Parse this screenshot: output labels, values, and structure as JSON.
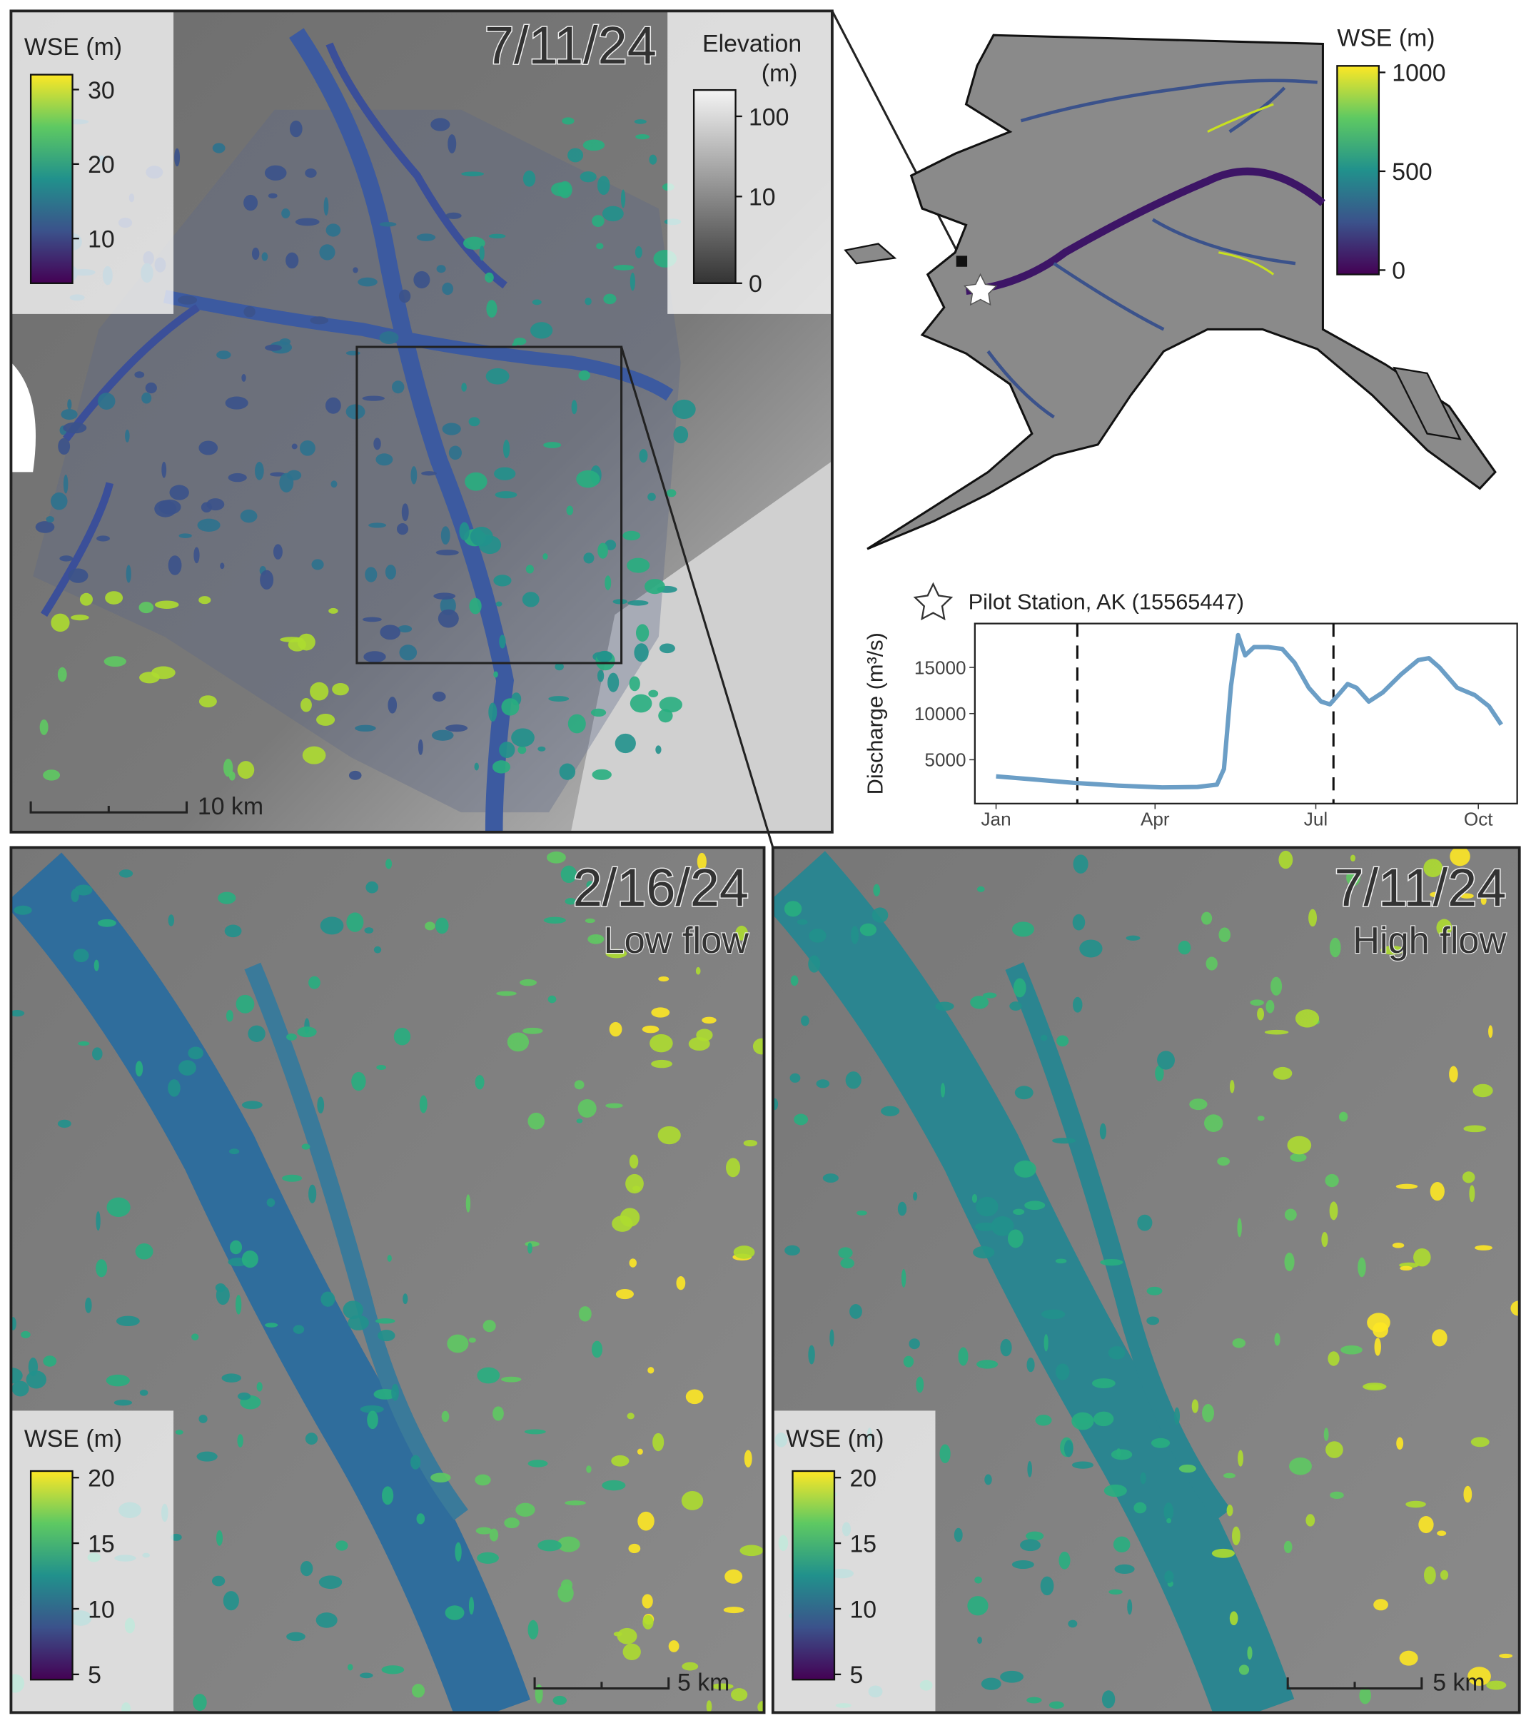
{
  "overview_map": {
    "date": "7/11/24",
    "wse_legend": {
      "title": "WSE (m)",
      "ticks": [
        10,
        20,
        30
      ],
      "lim": [
        4,
        32
      ]
    },
    "elevation_legend": {
      "title_lines": [
        "Elevation",
        "(m)"
      ],
      "ticks": [
        0,
        10,
        100
      ],
      "lim": [
        0,
        208
      ],
      "scale": "log1p"
    },
    "scale_bar": "10 km"
  },
  "alaska_map": {
    "wse_legend": {
      "title": "WSE (m)",
      "ticks": [
        0,
        500,
        1000
      ],
      "lim": [
        -22,
        1033
      ]
    }
  },
  "chart_data": {
    "type": "line",
    "title": "Pilot Station, AK (15565447)",
    "ylabel": "Discharge (m³/s)",
    "x": [
      1,
      20,
      45,
      70,
      95,
      115,
      126,
      130,
      134,
      138,
      142,
      147,
      155,
      163,
      170,
      178,
      185,
      190,
      196,
      200,
      205,
      212,
      220,
      230,
      240,
      246,
      252,
      262,
      272,
      280,
      287
    ],
    "series": [
      {
        "color": "#6b9ec6",
        "values": [
          3200,
          2900,
          2500,
          2200,
          2000,
          2050,
          2300,
          4000,
          13000,
          18500,
          16300,
          17200,
          17200,
          17000,
          15500,
          12800,
          11300,
          11000,
          12300,
          13200,
          12800,
          11300,
          12300,
          14200,
          15800,
          16000,
          15000,
          12800,
          12000,
          10800,
          8800
        ]
      }
    ],
    "xlim": [
      -11,
      296
    ],
    "xticks": [
      {
        "value": 1,
        "label": "Jan"
      },
      {
        "value": 91,
        "label": "Apr"
      },
      {
        "value": 182,
        "label": "Jul"
      },
      {
        "value": 274,
        "label": "Oct"
      }
    ],
    "ylim": [
      250,
      19750
    ],
    "yticks": [
      5000,
      10000,
      15000
    ],
    "vlines": [
      47,
      192
    ]
  },
  "low_flow_map": {
    "date": "2/16/24",
    "label": "Low flow",
    "wse_legend": {
      "title": "WSE (m)",
      "ticks": [
        5,
        10,
        15,
        20
      ],
      "lim": [
        4.6,
        20.5
      ]
    },
    "scale_bar": "5 km"
  },
  "high_flow_map": {
    "date": "7/11/24",
    "label": "High flow",
    "wse_legend": {
      "title": "WSE (m)",
      "ticks": [
        5,
        10,
        15,
        20
      ],
      "lim": [
        4.6,
        20.5
      ]
    },
    "scale_bar": "5 km"
  }
}
